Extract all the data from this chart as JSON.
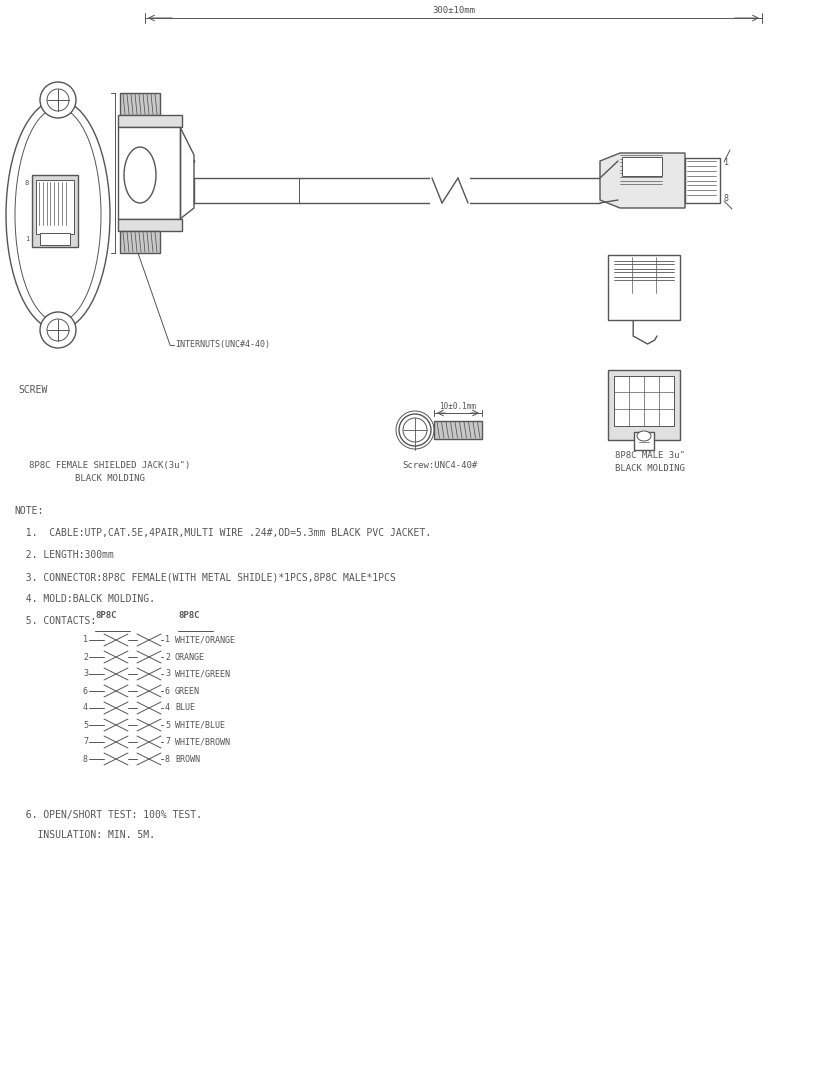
{
  "bg_color": "#ffffff",
  "line_color": "#555555",
  "dimension_text": "300±10mm",
  "note_lines": [
    "NOTE:",
    "  1.  CABLE:UTP,CAT.5E,4PAIR,MULTI WIRE .24#,OD=5.3mm BLACK PVC JACKET.",
    "  2. LENGTH:300mm",
    "  3. CONNECTOR:8P8C FEMALE(WITH METAL SHIDLE)*1PCS,8P8C MALE*1PCS",
    "  4. MOLD:BALCK MOLDING.",
    "  5. CONTACTS:"
  ],
  "contact_pins_left": [
    "1",
    "2",
    "3",
    "6",
    "4",
    "5",
    "7",
    "8"
  ],
  "contact_pins_right": [
    "1",
    "2",
    "3",
    "6",
    "4",
    "5",
    "7",
    "8"
  ],
  "contact_colors": [
    "WHITE/ORANGE",
    "ORANGE",
    "WHITE/GREEN",
    "GREEN",
    "BLUE",
    "WHITE/BLUE",
    "WHITE/BROWN",
    "BROWN"
  ],
  "note_line6": "  6. OPEN/SHORT TEST: 100% TEST.",
  "note_line7": "    INSULATION: MIN. 5M.",
  "label_female": "8P8C FEMALE SHIELDED JACK(3u\")",
  "label_female2": "BLACK MOLDING",
  "label_screw": "SCREW",
  "label_internuts": "INTERNUTS(UNC#4-40)",
  "label_screw2": "Screw:UNC4-40#",
  "label_screw2_dim": "10±0.1mm",
  "label_male": "8P8C MALE 3u\"",
  "label_male2": "BLACK MOLDING",
  "pin1_label": "1",
  "pin8_label": "8"
}
